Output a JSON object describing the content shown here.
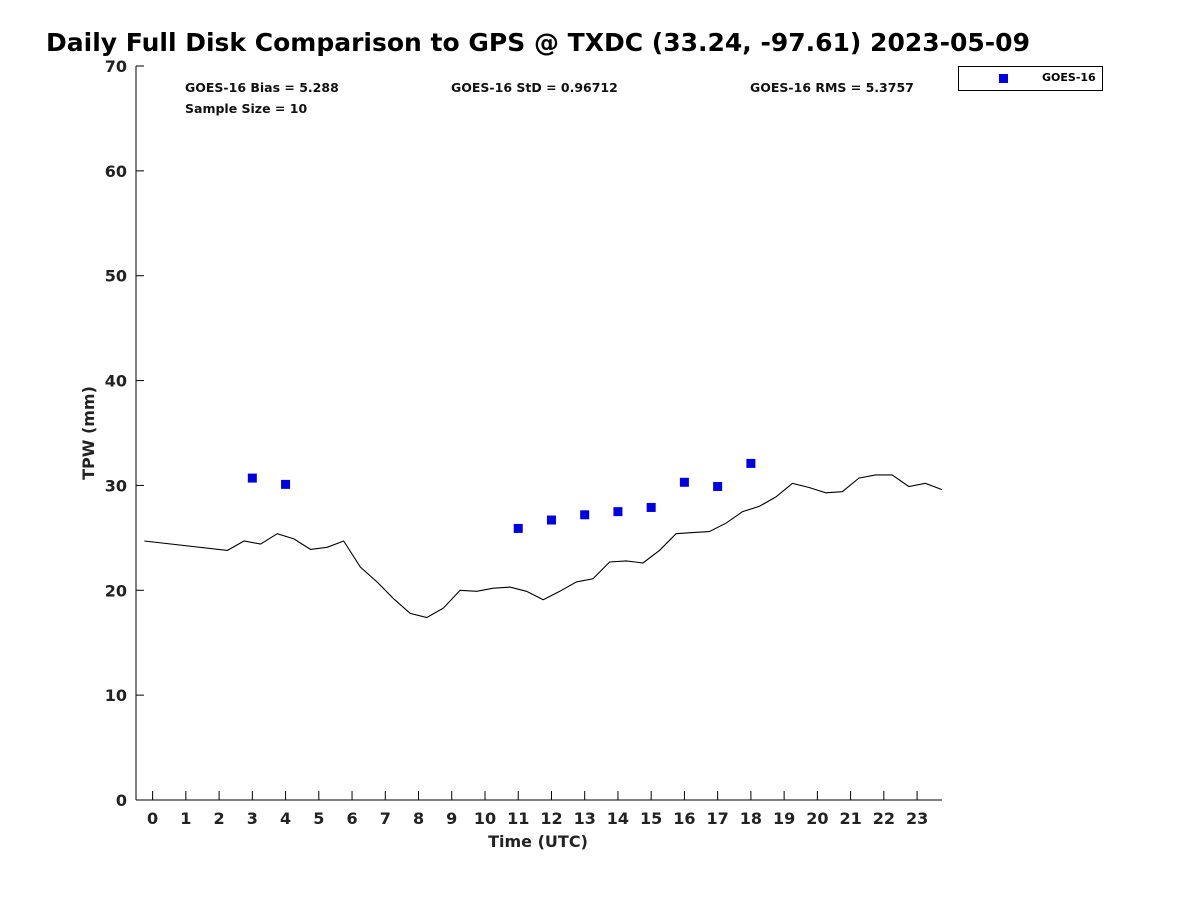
{
  "chart_data": {
    "type": "scatter",
    "title": "Daily Full Disk Comparison to GPS @ TXDC (33.24, -97.61) 2023-05-09",
    "xlabel": "Time (UTC)",
    "ylabel": "TPW (mm)",
    "xlim": [
      -0.5,
      23.75
    ],
    "ylim": [
      0,
      70
    ],
    "xticks": [
      0,
      1,
      2,
      3,
      4,
      5,
      6,
      7,
      8,
      9,
      10,
      11,
      12,
      13,
      14,
      15,
      16,
      17,
      18,
      19,
      20,
      21,
      22,
      23
    ],
    "yticks": [
      0,
      10,
      20,
      30,
      40,
      50,
      60,
      70
    ],
    "grid": false,
    "legend_position": "top-right, outside plot",
    "stats": {
      "bias": "GOES-16 Bias = 5.288",
      "std": "GOES-16 StD = 0.96712",
      "rms": "GOES-16 RMS = 5.3757",
      "sample_size": "Sample Size = 10"
    },
    "series": [
      {
        "name": "GOES-16",
        "kind": "scatter",
        "marker": "square",
        "color": "#0000e0",
        "x": [
          3,
          4,
          11,
          12,
          13,
          14,
          15,
          16,
          17,
          18
        ],
        "y": [
          30.7,
          30.1,
          25.9,
          26.7,
          27.2,
          27.5,
          27.9,
          30.3,
          29.9,
          32.1
        ]
      },
      {
        "kind": "line",
        "color": "#000000",
        "x": [
          -0.25,
          2.25,
          2.75,
          3.25,
          3.75,
          4.25,
          4.75,
          5.25,
          5.75,
          6.25,
          6.75,
          7.25,
          7.75,
          8.25,
          8.75,
          9.25,
          9.75,
          10.25,
          10.75,
          11.25,
          11.75,
          12.25,
          12.75,
          13.25,
          13.75,
          14.25,
          14.75,
          15.25,
          15.75,
          16.25,
          16.75,
          17.25,
          17.75,
          18.25,
          18.75,
          19.25,
          19.75,
          20.25,
          20.75,
          21.25,
          21.75,
          22.25,
          22.75,
          23.25,
          23.75
        ],
        "y": [
          24.7,
          23.8,
          24.7,
          24.4,
          25.4,
          24.9,
          23.9,
          24.1,
          24.7,
          22.2,
          20.8,
          19.2,
          17.8,
          17.4,
          18.3,
          20.0,
          19.9,
          20.2,
          20.3,
          19.9,
          19.1,
          19.9,
          20.8,
          21.1,
          22.7,
          22.8,
          22.6,
          23.8,
          25.4,
          25.5,
          25.6,
          26.4,
          27.5,
          28.0,
          28.9,
          30.2,
          29.8,
          29.3,
          29.4,
          30.7,
          31.0,
          31.0,
          29.9,
          30.2,
          29.6
        ]
      }
    ]
  },
  "legend": {
    "label": "GOES-16",
    "color": "#0000e0"
  }
}
